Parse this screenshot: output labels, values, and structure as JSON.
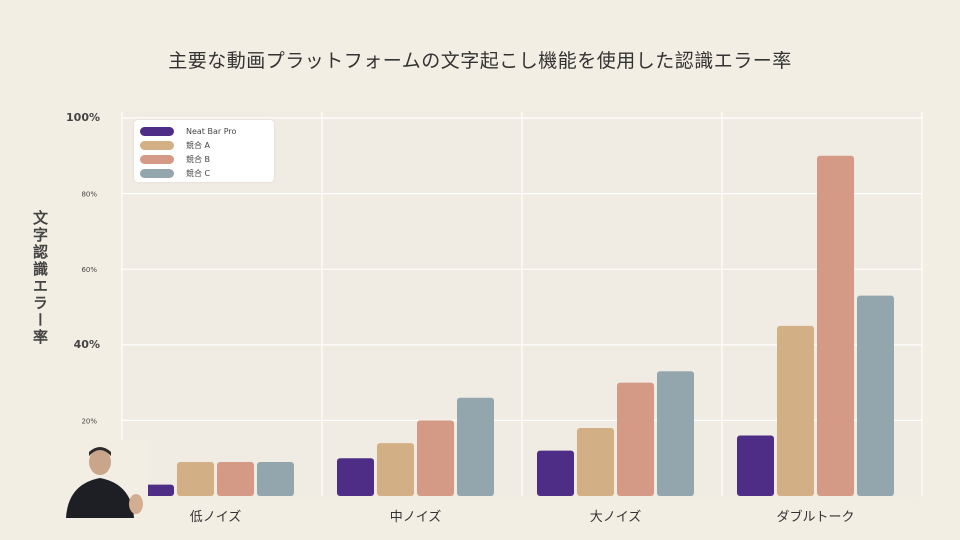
{
  "chart_data": {
    "type": "bar",
    "title": "主要な動画プラットフォームの文字起こし機能を使用した認識エラー率",
    "xlabel": "",
    "ylabel": "文字認識エラー率",
    "categories": [
      "低ノイズ",
      "中ノイズ",
      "大ノイズ",
      "ダブルトーク"
    ],
    "ylim": [
      0,
      100
    ],
    "yticks": [
      {
        "value": 20,
        "label": "20%"
      },
      {
        "value": 40,
        "label": "40%"
      },
      {
        "value": 60,
        "label": "60%"
      },
      {
        "value": 80,
        "label": "80%"
      },
      {
        "value": 100,
        "label": "100%"
      }
    ],
    "series": [
      {
        "name": "Neat Bar Pro",
        "color": "#4e2d86",
        "values": [
          3,
          10,
          12,
          16
        ]
      },
      {
        "name": "競合 A",
        "color": "#d3af85",
        "values": [
          9,
          14,
          18,
          45
        ]
      },
      {
        "name": "競合 B",
        "color": "#d59a86",
        "values": [
          9,
          20,
          30,
          90
        ]
      },
      {
        "name": "競合 C",
        "color": "#93a6ae",
        "values": [
          9,
          26,
          33,
          53
        ]
      }
    ],
    "grid": true,
    "legend": "top-left"
  }
}
